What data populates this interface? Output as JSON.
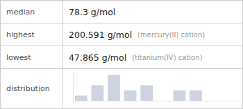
{
  "chart_data": {
    "type": "bar",
    "categories": [
      null,
      null,
      null,
      null,
      null,
      null,
      null,
      null,
      null,
      null
    ],
    "values": [
      1,
      3,
      5,
      2,
      3,
      0,
      2,
      2,
      0,
      0
    ],
    "color": "#cdd3e0",
    "ylim": [
      0,
      5.5
    ],
    "grid": false,
    "tick_labels": false,
    "annotations": [
      {
        "label": "median",
        "value": "78.3 g/mol"
      },
      {
        "label": "highest",
        "value": "200.591 g/mol",
        "note": "(mercury(II) cation)"
      },
      {
        "label": "lowest",
        "value": "47.865 g/mol",
        "note": "(titanium(IV) cation)"
      },
      {
        "label": "distribution"
      }
    ]
  }
}
